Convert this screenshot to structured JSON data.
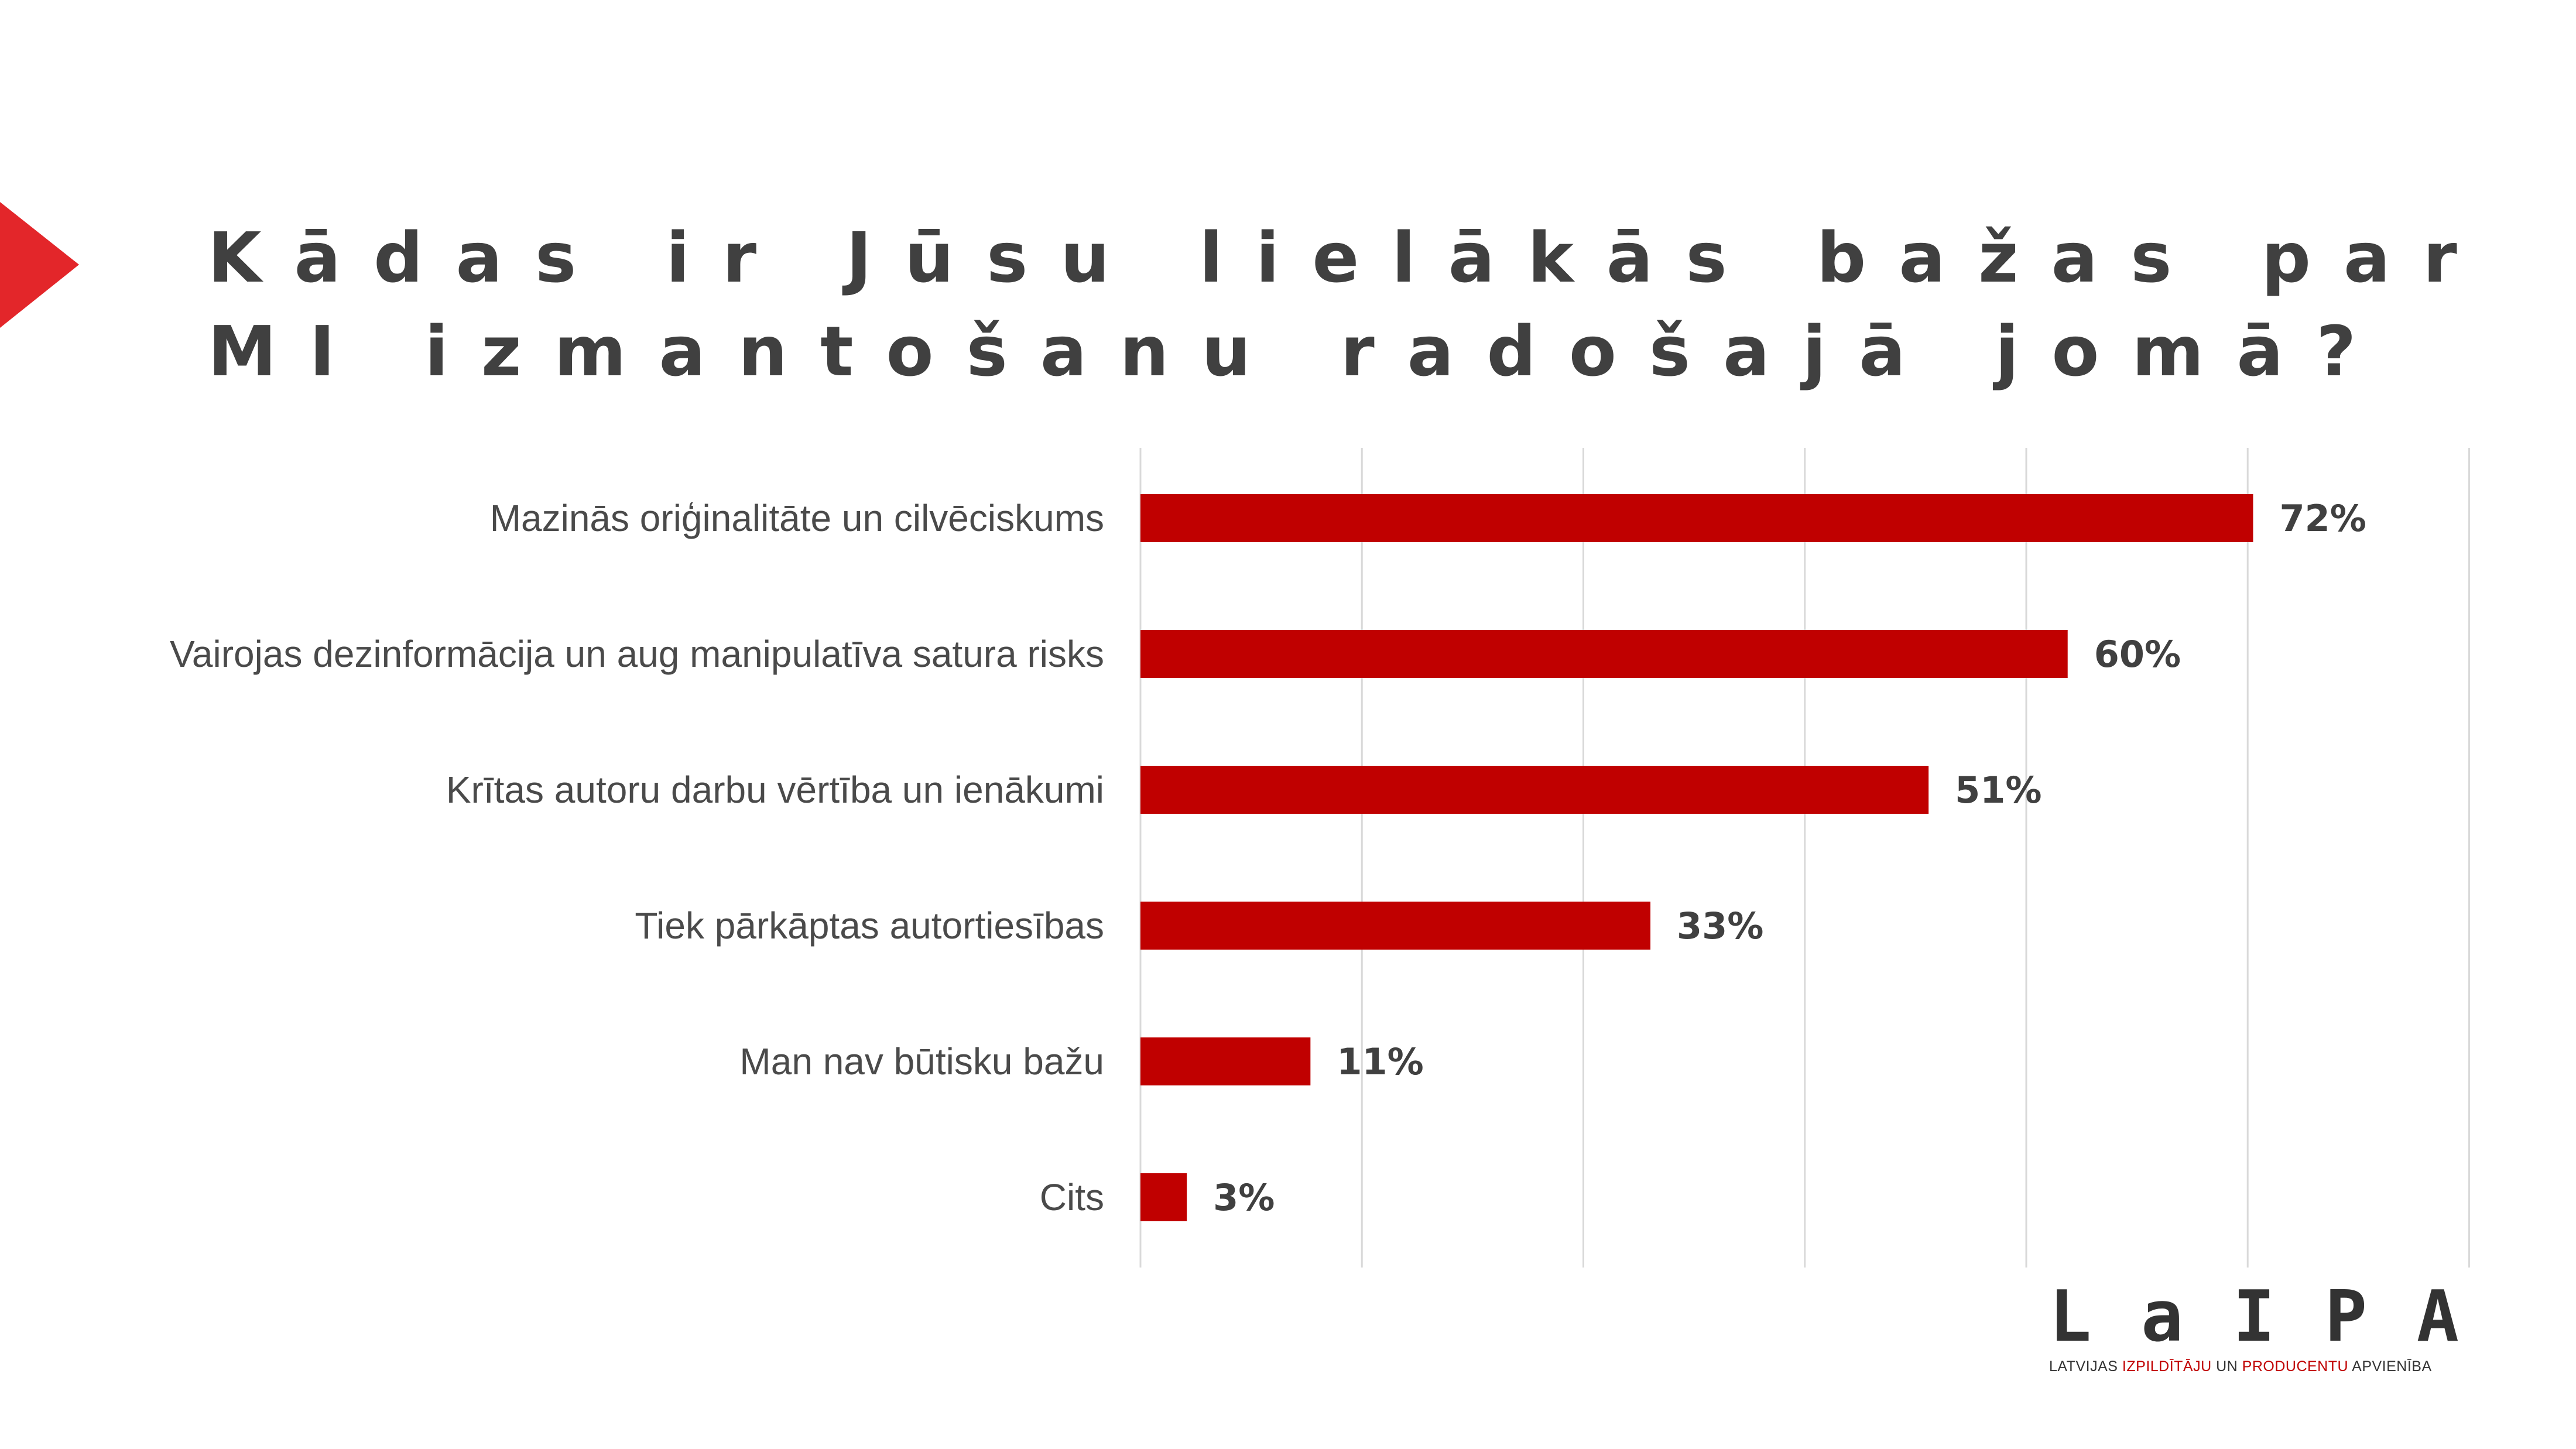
{
  "title_lines": [
    "Kādas ir Jūsu lielākās bažas par",
    "MI izmantošanu radošajā jomā?"
  ],
  "colors": {
    "bar": "#c00000",
    "arrow": "#e3262a",
    "text": "#404040",
    "grid": "#d9d9d9"
  },
  "logo": {
    "letters": [
      "L",
      "a",
      "I",
      "P",
      "A"
    ],
    "tagline": [
      {
        "text": "LATVIJAS ",
        "accent": false
      },
      {
        "text": "IZPILDĪTĀJU",
        "accent": true
      },
      {
        "text": " UN ",
        "accent": false
      },
      {
        "text": "PRODUCENTU",
        "accent": true
      },
      {
        "text": " APVIENĪBA",
        "accent": false
      }
    ]
  },
  "chart_data": {
    "type": "bar",
    "orientation": "horizontal",
    "categories": [
      "Mazinās oriģinalitāte un cilvēciskums",
      "Vairojas dezinformācija un aug manipulatīva satura risks",
      "Krītas autoru darbu vērtība un ienākumi",
      "Tiek pārkāptas autortiesības",
      "Man nav būtisku bažu",
      "Cits"
    ],
    "values": [
      72,
      60,
      51,
      33,
      11,
      3
    ],
    "value_labels": [
      "72%",
      "60%",
      "51%",
      "33%",
      "11%",
      "3%"
    ],
    "xlim": [
      0,
      86
    ],
    "grid_step": 14.33,
    "grid": true,
    "legend": "none"
  }
}
